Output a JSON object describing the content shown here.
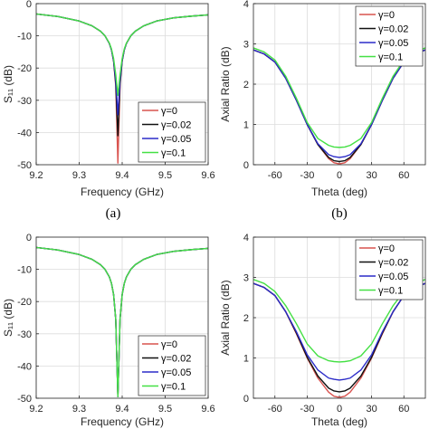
{
  "colors": [
    "#d9534f",
    "#111111",
    "#2b2bc8",
    "#44e044"
  ],
  "chart_data": [
    {
      "type": "line",
      "panel": "top-left",
      "caption": "(a)",
      "xlabel": "Frequency (GHz)",
      "ylabel": "S₁₁ (dB)",
      "xlim": [
        9.2,
        9.6
      ],
      "ylim": [
        -50,
        0
      ],
      "xticks": [
        "9.2",
        "9.3",
        "9.4",
        "9.5",
        "9.6"
      ],
      "yticks": [
        "0",
        "-10",
        "-20",
        "-30",
        "-40",
        "-50"
      ],
      "xtick_values": [
        9.2,
        9.3,
        9.4,
        9.5,
        9.6
      ],
      "ytick_values": [
        0,
        -10,
        -20,
        -30,
        -40,
        -50
      ],
      "grid": true,
      "legend_position": "bottom-right",
      "x": [
        9.2,
        9.25,
        9.3,
        9.33,
        9.35,
        9.36,
        9.37,
        9.375,
        9.38,
        9.385,
        9.39,
        9.395,
        9.4,
        9.405,
        9.41,
        9.42,
        9.43,
        9.45,
        9.48,
        9.52,
        9.56,
        9.6
      ],
      "series": [
        {
          "name": "γ=0",
          "values": [
            -3.2,
            -4.0,
            -5.4,
            -6.9,
            -8.6,
            -10.0,
            -12.3,
            -14.3,
            -17.8,
            -25.5,
            -49.5,
            -25.5,
            -17.8,
            -14.3,
            -12.3,
            -10.0,
            -8.6,
            -6.9,
            -5.4,
            -4.4,
            -3.9,
            -3.5
          ]
        },
        {
          "name": "γ=0.02",
          "values": [
            -3.2,
            -4.0,
            -5.4,
            -6.9,
            -8.6,
            -10.0,
            -12.3,
            -14.3,
            -17.8,
            -24.8,
            -41.0,
            -24.8,
            -17.8,
            -14.3,
            -12.3,
            -10.0,
            -8.6,
            -6.9,
            -5.4,
            -4.4,
            -3.9,
            -3.5
          ]
        },
        {
          "name": "γ=0.05",
          "values": [
            -3.2,
            -4.0,
            -5.4,
            -6.9,
            -8.6,
            -10.0,
            -12.3,
            -14.3,
            -17.6,
            -23.8,
            -34.5,
            -23.8,
            -17.6,
            -14.3,
            -12.3,
            -10.0,
            -8.6,
            -6.9,
            -5.4,
            -4.4,
            -3.9,
            -3.5
          ]
        },
        {
          "name": "γ=0.1",
          "values": [
            -3.2,
            -4.0,
            -5.4,
            -6.9,
            -8.6,
            -10.0,
            -12.2,
            -14.0,
            -17.0,
            -22.0,
            -28.5,
            -22.0,
            -17.0,
            -14.0,
            -12.2,
            -10.0,
            -8.6,
            -6.9,
            -5.4,
            -4.4,
            -3.9,
            -3.5
          ]
        }
      ]
    },
    {
      "type": "line",
      "panel": "top-right",
      "caption": "(b)",
      "xlabel": "Theta (deg)",
      "ylabel": "Axial Ratio (dB)",
      "xlim": [
        -80,
        80
      ],
      "ylim": [
        0,
        4
      ],
      "xticks": [
        "-60",
        "-30",
        "0",
        "30",
        "60"
      ],
      "yticks": [
        "0",
        "1",
        "2",
        "3",
        "4"
      ],
      "xtick_values": [
        -60,
        -30,
        0,
        30,
        60
      ],
      "ytick_values": [
        0,
        1,
        2,
        3,
        4
      ],
      "grid": true,
      "legend_position": "top-right",
      "x": [
        -80,
        -70,
        -60,
        -50,
        -40,
        -30,
        -20,
        -10,
        -5,
        0,
        5,
        10,
        20,
        30,
        40,
        50,
        60,
        70,
        80
      ],
      "series": [
        {
          "name": "γ=0",
          "values": [
            2.85,
            2.75,
            2.55,
            2.15,
            1.6,
            1.0,
            0.5,
            0.15,
            0.05,
            0.02,
            0.05,
            0.15,
            0.5,
            1.0,
            1.6,
            2.15,
            2.55,
            2.75,
            2.85
          ]
        },
        {
          "name": "γ=0.02",
          "values": [
            2.85,
            2.75,
            2.55,
            2.15,
            1.6,
            1.0,
            0.5,
            0.18,
            0.1,
            0.08,
            0.1,
            0.18,
            0.5,
            1.0,
            1.6,
            2.15,
            2.55,
            2.75,
            2.85
          ]
        },
        {
          "name": "γ=0.05",
          "values": [
            2.85,
            2.75,
            2.55,
            2.15,
            1.6,
            1.0,
            0.52,
            0.25,
            0.2,
            0.18,
            0.2,
            0.25,
            0.52,
            1.0,
            1.6,
            2.15,
            2.55,
            2.75,
            2.85
          ]
        },
        {
          "name": "γ=0.1",
          "values": [
            2.9,
            2.8,
            2.6,
            2.2,
            1.65,
            1.05,
            0.65,
            0.48,
            0.44,
            0.43,
            0.44,
            0.48,
            0.65,
            1.05,
            1.65,
            2.2,
            2.6,
            2.8,
            2.9
          ]
        }
      ]
    },
    {
      "type": "line",
      "panel": "bottom-left",
      "xlabel": "Frequency (GHz)",
      "ylabel": "S₁₁ (dB)",
      "xlim": [
        9.2,
        9.6
      ],
      "ylim": [
        -50,
        0
      ],
      "xticks": [
        "9.2",
        "9.3",
        "9.4",
        "9.5",
        "9.6"
      ],
      "yticks": [
        "0",
        "-10",
        "-20",
        "-30",
        "-40",
        "-50"
      ],
      "xtick_values": [
        9.2,
        9.3,
        9.4,
        9.5,
        9.6
      ],
      "ytick_values": [
        0,
        -10,
        -20,
        -30,
        -40,
        -50
      ],
      "grid": true,
      "legend_position": "bottom-right",
      "x": [
        9.2,
        9.25,
        9.3,
        9.33,
        9.35,
        9.36,
        9.37,
        9.375,
        9.38,
        9.385,
        9.39,
        9.395,
        9.4,
        9.405,
        9.41,
        9.42,
        9.43,
        9.45,
        9.48,
        9.52,
        9.56,
        9.6
      ],
      "series": [
        {
          "name": "γ=0",
          "values": [
            -3.2,
            -4.0,
            -5.4,
            -6.9,
            -8.6,
            -10.0,
            -12.3,
            -14.3,
            -17.8,
            -25.5,
            -49.5,
            -25.5,
            -17.8,
            -14.3,
            -12.3,
            -10.0,
            -8.6,
            -6.9,
            -5.4,
            -4.4,
            -3.9,
            -3.5
          ]
        },
        {
          "name": "γ=0.02",
          "values": [
            -3.2,
            -4.0,
            -5.4,
            -6.9,
            -8.6,
            -10.0,
            -12.3,
            -14.3,
            -17.8,
            -25.5,
            -49.5,
            -25.5,
            -17.8,
            -14.3,
            -12.3,
            -10.0,
            -8.6,
            -6.9,
            -5.4,
            -4.4,
            -3.9,
            -3.5
          ]
        },
        {
          "name": "γ=0.05",
          "values": [
            -3.2,
            -4.0,
            -5.4,
            -6.9,
            -8.6,
            -10.0,
            -12.3,
            -14.3,
            -17.8,
            -25.5,
            -49.5,
            -25.5,
            -17.8,
            -14.3,
            -12.3,
            -10.0,
            -8.6,
            -6.9,
            -5.4,
            -4.4,
            -3.9,
            -3.5
          ]
        },
        {
          "name": "γ=0.1",
          "values": [
            -3.2,
            -4.0,
            -5.4,
            -6.9,
            -8.6,
            -10.0,
            -12.3,
            -14.3,
            -17.8,
            -25.5,
            -49.5,
            -25.5,
            -17.8,
            -14.3,
            -12.3,
            -10.0,
            -8.6,
            -6.9,
            -5.4,
            -4.4,
            -3.9,
            -3.5
          ]
        }
      ]
    },
    {
      "type": "line",
      "panel": "bottom-right",
      "xlabel": "Theta (deg)",
      "ylabel": "Axial Ratio (dB)",
      "xlim": [
        -80,
        80
      ],
      "ylim": [
        0,
        4
      ],
      "xticks": [
        "-60",
        "-30",
        "0",
        "30",
        "60"
      ],
      "yticks": [
        "0",
        "1",
        "2",
        "3",
        "4"
      ],
      "xtick_values": [
        -60,
        -30,
        0,
        30,
        60
      ],
      "ytick_values": [
        0,
        1,
        2,
        3,
        4
      ],
      "grid": true,
      "legend_position": "top-right",
      "x": [
        -80,
        -70,
        -60,
        -50,
        -40,
        -30,
        -20,
        -10,
        -5,
        0,
        5,
        10,
        20,
        30,
        40,
        50,
        60,
        70,
        80
      ],
      "series": [
        {
          "name": "γ=0",
          "values": [
            2.85,
            2.75,
            2.55,
            2.15,
            1.6,
            1.0,
            0.5,
            0.15,
            0.05,
            0.02,
            0.05,
            0.15,
            0.5,
            1.0,
            1.6,
            2.15,
            2.55,
            2.75,
            2.85
          ]
        },
        {
          "name": "γ=0.02",
          "values": [
            2.85,
            2.75,
            2.55,
            2.15,
            1.62,
            1.02,
            0.55,
            0.25,
            0.18,
            0.16,
            0.18,
            0.25,
            0.55,
            1.02,
            1.62,
            2.15,
            2.55,
            2.75,
            2.85
          ]
        },
        {
          "name": "γ=0.05",
          "values": [
            2.85,
            2.75,
            2.55,
            2.15,
            1.65,
            1.08,
            0.7,
            0.5,
            0.47,
            0.45,
            0.47,
            0.5,
            0.7,
            1.08,
            1.65,
            2.15,
            2.55,
            2.75,
            2.85
          ]
        },
        {
          "name": "γ=0.1",
          "values": [
            2.95,
            2.85,
            2.65,
            2.3,
            1.85,
            1.35,
            1.05,
            0.93,
            0.91,
            0.9,
            0.91,
            0.93,
            1.05,
            1.35,
            1.85,
            2.3,
            2.65,
            2.85,
            2.95
          ]
        }
      ]
    }
  ]
}
